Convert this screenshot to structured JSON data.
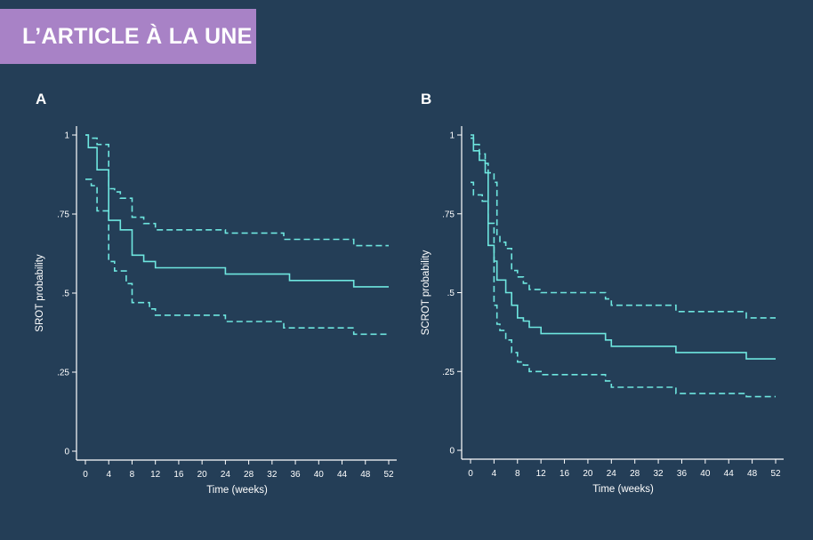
{
  "banner": {
    "text": "L’ARTICLE À LA UNE"
  },
  "colors": {
    "background": "#243e57",
    "banner": "#a882c6",
    "curve": "#6ee6df",
    "axis": "#ffffff"
  },
  "chart_data": [
    {
      "type": "line",
      "step": true,
      "panel_label": "A",
      "xlabel": "Time (weeks)",
      "ylabel": "SROT probability",
      "xlim": [
        0,
        52
      ],
      "ylim": [
        0,
        1
      ],
      "x_ticks": [
        0,
        4,
        8,
        12,
        16,
        20,
        24,
        28,
        32,
        36,
        40,
        44,
        48,
        52
      ],
      "y_ticks": [
        0,
        0.25,
        0.5,
        0.75,
        1
      ],
      "y_tick_labels": [
        "0",
        ".25",
        ".5",
        ".75",
        "1"
      ],
      "grid": false,
      "series": [
        {
          "style": "solid",
          "x": [
            0,
            0.5,
            2,
            4,
            6,
            8,
            10,
            12,
            24,
            35,
            46,
            52
          ],
          "y": [
            1,
            0.96,
            0.89,
            0.73,
            0.7,
            0.62,
            0.6,
            0.58,
            0.56,
            0.54,
            0.52,
            0.52
          ]
        },
        {
          "style": "dashed",
          "x": [
            0,
            0.5,
            2,
            4,
            5,
            6,
            8,
            10,
            12,
            24,
            34,
            46,
            52
          ],
          "y": [
            1,
            0.99,
            0.97,
            0.83,
            0.82,
            0.8,
            0.74,
            0.72,
            0.7,
            0.69,
            0.67,
            0.65,
            0.65
          ]
        },
        {
          "style": "dashed",
          "x": [
            0,
            1,
            2,
            4,
            5,
            7,
            8,
            11,
            12,
            24,
            34,
            46,
            52
          ],
          "y": [
            0.86,
            0.84,
            0.76,
            0.6,
            0.57,
            0.53,
            0.47,
            0.45,
            0.43,
            0.41,
            0.39,
            0.37,
            0.37
          ]
        }
      ]
    },
    {
      "type": "line",
      "step": true,
      "panel_label": "B",
      "xlabel": "Time (weeks)",
      "ylabel": "SCROT probability",
      "xlim": [
        0,
        52
      ],
      "ylim": [
        0,
        1
      ],
      "x_ticks": [
        0,
        4,
        8,
        12,
        16,
        20,
        24,
        28,
        32,
        36,
        40,
        44,
        48,
        52
      ],
      "y_ticks": [
        0,
        0.25,
        0.5,
        0.75,
        1
      ],
      "y_tick_labels": [
        "0",
        ".25",
        ".5",
        ".75",
        "1"
      ],
      "grid": false,
      "series": [
        {
          "style": "solid",
          "x": [
            0,
            0.5,
            1.5,
            2.5,
            3,
            4,
            4.5,
            6,
            7,
            8,
            9,
            10,
            12,
            23,
            24,
            35,
            47,
            52
          ],
          "y": [
            1,
            0.95,
            0.92,
            0.88,
            0.65,
            0.6,
            0.54,
            0.5,
            0.46,
            0.42,
            0.41,
            0.39,
            0.37,
            0.35,
            0.33,
            0.31,
            0.29,
            0.29
          ]
        },
        {
          "style": "dashed",
          "x": [
            0,
            0.5,
            1.5,
            2.5,
            3,
            4,
            4.5,
            5,
            6,
            7,
            8,
            9,
            10,
            12,
            23,
            24,
            35,
            47,
            52
          ],
          "y": [
            0.99,
            0.97,
            0.94,
            0.91,
            0.88,
            0.85,
            0.68,
            0.66,
            0.64,
            0.57,
            0.55,
            0.53,
            0.51,
            0.5,
            0.48,
            0.46,
            0.44,
            0.42,
            0.42
          ]
        },
        {
          "style": "dashed",
          "x": [
            0,
            0.5,
            2,
            3,
            4,
            4.5,
            5,
            6,
            7,
            8,
            9,
            10,
            12,
            23,
            24,
            35,
            47,
            52
          ],
          "y": [
            0.85,
            0.81,
            0.79,
            0.72,
            0.46,
            0.4,
            0.38,
            0.35,
            0.31,
            0.28,
            0.27,
            0.25,
            0.24,
            0.22,
            0.2,
            0.18,
            0.17,
            0.17
          ]
        }
      ]
    }
  ]
}
